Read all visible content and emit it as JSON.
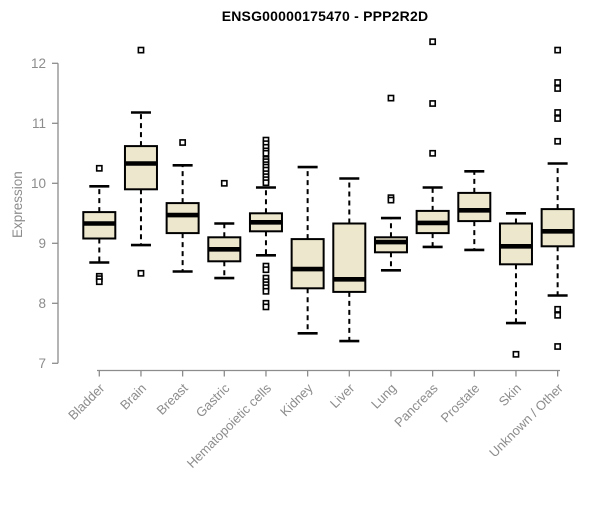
{
  "chart_data": {
    "type": "boxplot",
    "title": "ENSG00000175470 - PPP2R2D",
    "ylabel": "Expression",
    "xlabel": "",
    "ylim": [
      7,
      12
    ],
    "y_ticks": [
      12,
      11,
      10,
      9,
      8,
      7
    ],
    "grid": false,
    "legend": "none",
    "colors": {
      "box_fill": "#ede7cd",
      "box_stroke": "#000000",
      "axis": "#8c8c8c",
      "tick_text": "#8c8c8c",
      "title_text": "#000000",
      "outlier_fill": "#ffffff"
    },
    "categories": [
      "Bladder",
      "Brain",
      "Breast",
      "Gastric",
      "Hematopoietic cells",
      "Kidney",
      "Liver",
      "Lung",
      "Pancreas",
      "Prostate",
      "Skin",
      "Unknown / Other"
    ],
    "boxes": [
      {
        "category": "Bladder",
        "low": 8.68,
        "q1": 9.08,
        "median": 9.33,
        "q3": 9.52,
        "high": 9.95,
        "outliers": [
          10.25,
          8.45,
          8.41,
          8.36
        ]
      },
      {
        "category": "Brain",
        "low": 8.97,
        "q1": 9.9,
        "median": 10.33,
        "q3": 10.62,
        "high": 11.18,
        "outliers": [
          12.22,
          8.5
        ]
      },
      {
        "category": "Breast",
        "low": 8.53,
        "q1": 9.17,
        "median": 9.47,
        "q3": 9.67,
        "high": 10.3,
        "outliers": [
          10.68
        ]
      },
      {
        "category": "Gastric",
        "low": 8.42,
        "q1": 8.7,
        "median": 8.9,
        "q3": 9.1,
        "high": 9.33,
        "outliers": [
          10.0
        ]
      },
      {
        "category": "Hematopoietic cells",
        "low": 8.8,
        "q1": 9.2,
        "median": 9.35,
        "q3": 9.5,
        "high": 9.93,
        "outliers": [
          10.72,
          10.66,
          10.6,
          10.54,
          10.5,
          10.4,
          10.36,
          10.31,
          10.27,
          10.22,
          10.16,
          10.11,
          10.06,
          10.01,
          8.62,
          8.56,
          8.42,
          8.36,
          8.31,
          8.26,
          8.2,
          8.0,
          7.94
        ]
      },
      {
        "category": "Kidney",
        "low": 7.5,
        "q1": 8.25,
        "median": 8.57,
        "q3": 9.07,
        "high": 10.27,
        "outliers": []
      },
      {
        "category": "Liver",
        "low": 7.37,
        "q1": 8.19,
        "median": 8.4,
        "q3": 9.33,
        "high": 10.08,
        "outliers": []
      },
      {
        "category": "Lung",
        "low": 8.55,
        "q1": 8.85,
        "median": 9.02,
        "q3": 9.1,
        "high": 9.42,
        "outliers": [
          11.42,
          9.76,
          9.72
        ]
      },
      {
        "category": "Pancreas",
        "low": 8.94,
        "q1": 9.17,
        "median": 9.34,
        "q3": 9.54,
        "high": 9.93,
        "outliers": [
          12.36,
          11.33,
          10.5
        ]
      },
      {
        "category": "Prostate",
        "low": 8.89,
        "q1": 9.37,
        "median": 9.55,
        "q3": 9.84,
        "high": 10.2,
        "outliers": []
      },
      {
        "category": "Skin",
        "low": 7.67,
        "q1": 8.65,
        "median": 8.95,
        "q3": 9.33,
        "high": 9.5,
        "outliers": [
          7.15
        ]
      },
      {
        "category": "Unknown / Other",
        "low": 8.13,
        "q1": 8.95,
        "median": 9.2,
        "q3": 9.57,
        "high": 10.33,
        "outliers": [
          12.22,
          11.68,
          11.58,
          11.18,
          11.08,
          10.7,
          7.9,
          7.8,
          7.28
        ]
      }
    ]
  }
}
